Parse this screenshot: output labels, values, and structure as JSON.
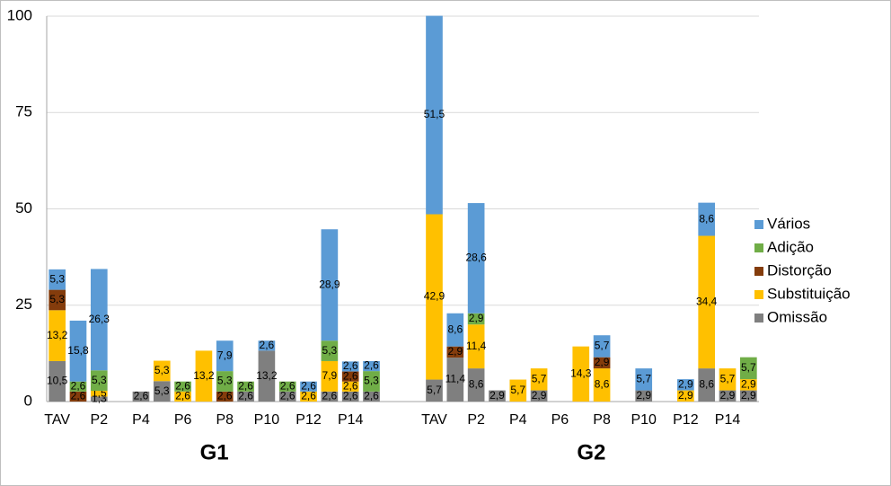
{
  "chart_data": {
    "type": "bar",
    "stacked": true,
    "categories": [
      "TAV",
      null,
      "P2",
      null,
      "P4",
      null,
      "P6",
      null,
      "P8",
      null,
      "P10",
      null,
      "P12",
      null,
      "P14",
      null,
      null,
      null,
      "TAV",
      null,
      "P2",
      null,
      "P4",
      null,
      "P6",
      null,
      "P8",
      null,
      "P10",
      null,
      "P12",
      null,
      "P14",
      null
    ],
    "group_labels": [
      "G1",
      "G2"
    ],
    "series": [
      {
        "name": "Omissão",
        "color": "#7f7f7f",
        "values": [
          10.5,
          null,
          1.3,
          null,
          2.6,
          5.3,
          null,
          null,
          null,
          2.6,
          13.2,
          2.6,
          null,
          2.6,
          2.6,
          2.6,
          null,
          null,
          5.7,
          11.4,
          8.6,
          2.9,
          null,
          2.9,
          null,
          null,
          null,
          null,
          2.9,
          null,
          null,
          8.6,
          2.9,
          2.9
        ],
        "value_labels": [
          "10,5",
          null,
          "1,3",
          null,
          "2,6",
          "5,3",
          null,
          null,
          null,
          "2,6",
          "13,2",
          "2,6",
          null,
          "2,6",
          "2,6",
          "2,6",
          null,
          null,
          "5,7",
          "11,4",
          "8,6",
          "2,9",
          null,
          "2,9",
          null,
          null,
          null,
          null,
          "2,9",
          null,
          null,
          "8,6",
          "2,9",
          "2,9"
        ]
      },
      {
        "name": "Substituição",
        "color": "#ffc000",
        "values": [
          13.2,
          null,
          1.5,
          null,
          null,
          5.3,
          2.6,
          13.2,
          null,
          null,
          null,
          null,
          2.6,
          7.9,
          2.6,
          null,
          null,
          null,
          42.9,
          null,
          11.4,
          null,
          5.7,
          5.7,
          null,
          14.3,
          8.6,
          null,
          null,
          null,
          2.9,
          34.4,
          5.7,
          2.9
        ],
        "value_labels": [
          "13,2",
          null,
          "1,5",
          null,
          null,
          "5,3",
          "2,6",
          "13,2",
          null,
          null,
          null,
          null,
          "2,6",
          "7,9",
          "2,6",
          null,
          null,
          null,
          "42,9",
          null,
          "11,4",
          null,
          "5,7",
          "5,7",
          null,
          "14,3",
          "8,6",
          null,
          null,
          null,
          "2,9",
          "34,4",
          "5,7",
          "2,9"
        ]
      },
      {
        "name": "Distorção",
        "color": "#843c0c",
        "values": [
          5.3,
          2.6,
          null,
          null,
          null,
          null,
          null,
          null,
          2.6,
          null,
          null,
          null,
          null,
          null,
          2.6,
          null,
          null,
          null,
          null,
          2.9,
          null,
          null,
          null,
          null,
          null,
          null,
          2.9,
          null,
          null,
          null,
          null,
          null,
          null,
          null
        ],
        "value_labels": [
          "5,3",
          "2,6",
          null,
          null,
          null,
          null,
          null,
          null,
          "2,6",
          null,
          null,
          null,
          null,
          null,
          "2,6",
          null,
          null,
          null,
          null,
          "2,9",
          null,
          null,
          null,
          null,
          null,
          null,
          "2,9",
          null,
          null,
          null,
          null,
          null,
          null,
          null
        ]
      },
      {
        "name": "Adição",
        "color": "#70ad47",
        "values": [
          null,
          2.6,
          5.3,
          null,
          null,
          null,
          2.6,
          null,
          5.3,
          2.6,
          null,
          2.6,
          null,
          5.3,
          null,
          5.3,
          null,
          null,
          null,
          null,
          2.9,
          null,
          null,
          null,
          null,
          null,
          null,
          null,
          null,
          null,
          null,
          null,
          null,
          5.7
        ],
        "value_labels": [
          null,
          "2,6",
          "5,3",
          null,
          null,
          null,
          "2,6",
          null,
          "5,3",
          "2,6",
          null,
          "2,6",
          null,
          "5,3",
          null,
          "5,3",
          null,
          null,
          null,
          null,
          "2,9",
          null,
          null,
          null,
          null,
          null,
          null,
          null,
          null,
          null,
          null,
          null,
          null,
          "5,7"
        ]
      },
      {
        "name": "Vários",
        "color": "#5b9bd5",
        "values": [
          5.3,
          15.8,
          26.3,
          null,
          null,
          null,
          null,
          null,
          7.9,
          null,
          2.6,
          null,
          2.6,
          28.9,
          2.6,
          2.6,
          null,
          null,
          51.5,
          8.6,
          28.6,
          null,
          null,
          null,
          null,
          null,
          5.7,
          null,
          5.7,
          null,
          2.9,
          8.6,
          null,
          null
        ],
        "value_labels": [
          "5,3",
          "15,8",
          "26,3",
          null,
          null,
          null,
          null,
          null,
          "7,9",
          null,
          "2,6",
          null,
          "2,6",
          "28,9",
          "2,6",
          "2,6",
          null,
          null,
          "51,5",
          "8,6",
          "28,6",
          null,
          null,
          null,
          null,
          null,
          "5,7",
          null,
          "5,7",
          null,
          "2,9",
          "8,6",
          null,
          null
        ]
      }
    ],
    "ylim": [
      0,
      100
    ],
    "yticks": [
      0,
      25,
      50,
      75,
      100
    ],
    "grid": true,
    "legend": "right"
  }
}
